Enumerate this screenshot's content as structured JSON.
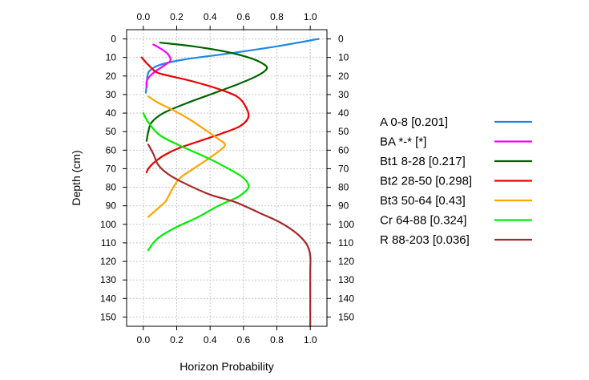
{
  "chart_data": {
    "type": "line",
    "xlabel": "Horizon Probability",
    "ylabel": "Depth (cm)",
    "xlim": [
      -0.1,
      1.1
    ],
    "ylim": [
      155,
      -5
    ],
    "x_ticks": [
      0.0,
      0.2,
      0.4,
      0.6,
      0.8,
      1.0
    ],
    "x_tick_labels": [
      "0.0",
      "0.2",
      "0.4",
      "0.6",
      "0.8",
      "1.0"
    ],
    "y_ticks": [
      0,
      10,
      20,
      30,
      40,
      50,
      60,
      70,
      80,
      90,
      100,
      110,
      120,
      130,
      140,
      150
    ],
    "y_tick_labels": [
      "0",
      "10",
      "20",
      "30",
      "40",
      "50",
      "60",
      "70",
      "80",
      "90",
      "100",
      "110",
      "120",
      "130",
      "140",
      "150"
    ],
    "grid": true,
    "legend_position": "right",
    "series": [
      {
        "name": "A 0-8 [0.201]",
        "color": "#1E88E5",
        "points": [
          [
            1.05,
            0
          ],
          [
            0.8,
            4
          ],
          [
            0.5,
            8
          ],
          [
            0.25,
            11
          ],
          [
            0.1,
            14
          ],
          [
            0.04,
            17
          ],
          [
            0.025,
            20
          ],
          [
            0.02,
            25
          ],
          [
            0.015,
            29
          ]
        ]
      },
      {
        "name": "BA *-* [*]",
        "color": "#FF00FF",
        "points": [
          [
            0.06,
            3
          ],
          [
            0.1,
            5
          ],
          [
            0.14,
            7.5
          ],
          [
            0.16,
            10
          ],
          [
            0.16,
            12
          ],
          [
            0.13,
            14
          ],
          [
            0.08,
            17
          ],
          [
            0.04,
            20
          ],
          [
            0.02,
            23
          ],
          [
            0.02,
            26
          ]
        ]
      },
      {
        "name": "Bt1 8-28 [0.217]",
        "color": "#006400",
        "points": [
          [
            0.1,
            2
          ],
          [
            0.3,
            4
          ],
          [
            0.5,
            7
          ],
          [
            0.63,
            10
          ],
          [
            0.71,
            13
          ],
          [
            0.74,
            16
          ],
          [
            0.68,
            20
          ],
          [
            0.55,
            25
          ],
          [
            0.4,
            30
          ],
          [
            0.25,
            35
          ],
          [
            0.12,
            40
          ],
          [
            0.05,
            45
          ],
          [
            0.03,
            50
          ],
          [
            0.02,
            55
          ]
        ]
      },
      {
        "name": "Bt2 28-50 [0.298]",
        "color": "#EE0000",
        "points": [
          [
            -0.01,
            10
          ],
          [
            0.03,
            14
          ],
          [
            0.08,
            18
          ],
          [
            0.16,
            20
          ],
          [
            0.3,
            23
          ],
          [
            0.45,
            27
          ],
          [
            0.56,
            31
          ],
          [
            0.61,
            36
          ],
          [
            0.63,
            42
          ],
          [
            0.58,
            47
          ],
          [
            0.47,
            51
          ],
          [
            0.34,
            55
          ],
          [
            0.21,
            59
          ],
          [
            0.12,
            63
          ],
          [
            0.06,
            67
          ],
          [
            0.03,
            70
          ],
          [
            0.02,
            72
          ]
        ]
      },
      {
        "name": "Bt3 50-64 [0.43]",
        "color": "#FFA500",
        "points": [
          [
            0.03,
            31
          ],
          [
            0.08,
            34
          ],
          [
            0.17,
            38
          ],
          [
            0.27,
            43
          ],
          [
            0.37,
            49
          ],
          [
            0.45,
            54
          ],
          [
            0.49,
            57
          ],
          [
            0.46,
            60
          ],
          [
            0.4,
            64
          ],
          [
            0.3,
            70
          ],
          [
            0.22,
            75
          ],
          [
            0.18,
            80
          ],
          [
            0.15,
            85
          ],
          [
            0.13,
            88
          ],
          [
            0.08,
            92
          ],
          [
            0.03,
            96
          ]
        ]
      },
      {
        "name": "Cr 64-88 [0.324]",
        "color": "#00EE00",
        "points": [
          [
            0.0,
            40
          ],
          [
            0.03,
            45
          ],
          [
            0.1,
            52
          ],
          [
            0.23,
            58
          ],
          [
            0.38,
            64
          ],
          [
            0.51,
            70
          ],
          [
            0.6,
            75
          ],
          [
            0.63,
            80
          ],
          [
            0.57,
            85
          ],
          [
            0.45,
            90
          ],
          [
            0.33,
            96
          ],
          [
            0.21,
            101
          ],
          [
            0.11,
            106
          ],
          [
            0.06,
            110
          ],
          [
            0.03,
            114
          ]
        ]
      },
      {
        "name": "R 88-203 [0.036]",
        "color": "#A52A2A",
        "points": [
          [
            0.03,
            57
          ],
          [
            0.06,
            62
          ],
          [
            0.09,
            68
          ],
          [
            0.15,
            73
          ],
          [
            0.25,
            78
          ],
          [
            0.4,
            84
          ],
          [
            0.55,
            88
          ],
          [
            0.7,
            94
          ],
          [
            0.82,
            99
          ],
          [
            0.92,
            105
          ],
          [
            0.98,
            111
          ],
          [
            1.0,
            117
          ],
          [
            1.0,
            125
          ],
          [
            1.0,
            140
          ],
          [
            1.0,
            155
          ]
        ]
      }
    ]
  }
}
